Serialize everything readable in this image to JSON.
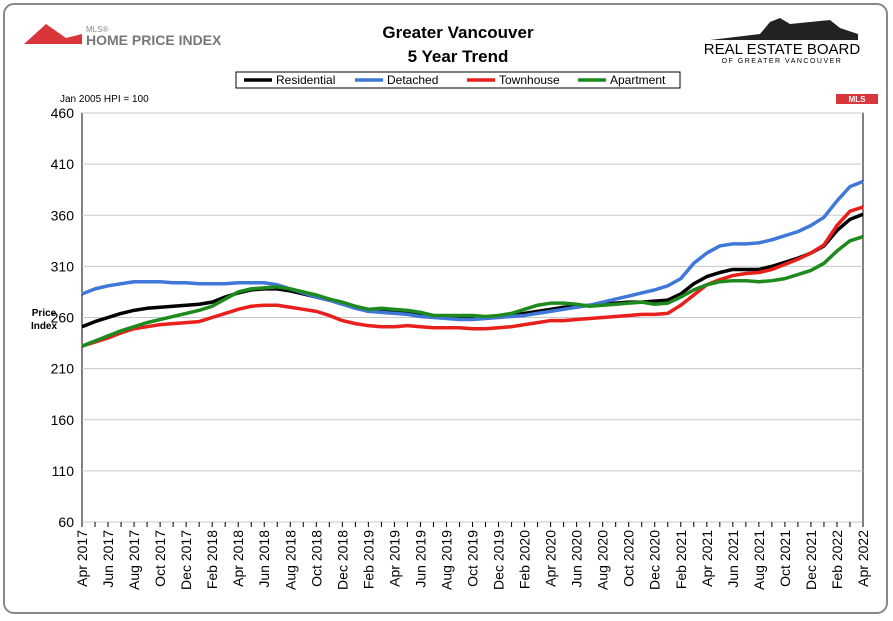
{
  "chart_data": {
    "type": "line",
    "title": "Greater Vancouver",
    "subtitle": "5 Year Trend",
    "logo_left_top": "MLS®",
    "logo_left": "HOME PRICE INDEX",
    "logo_right": "REAL ESTATE BOARD",
    "logo_right_sub": "OF GREATER VANCOUVER",
    "badge": "MLS",
    "note": "Jan 2005 HPI = 100",
    "y_label": "Price Index",
    "categories": [
      "Apr 2017",
      null,
      "Jun 2017",
      null,
      "Aug 2017",
      null,
      "Oct 2017",
      null,
      "Dec 2017",
      null,
      "Feb 2018",
      null,
      "Apr 2018",
      null,
      "Jun 2018",
      null,
      "Aug 2018",
      null,
      "Oct 2018",
      null,
      "Dec 2018",
      null,
      "Feb 2019",
      null,
      "Apr 2019",
      null,
      "Jun 2019",
      null,
      "Aug 2019",
      null,
      "Oct 2019",
      null,
      "Dec 2019",
      null,
      "Feb 2020",
      null,
      "Apr 2020",
      null,
      "Jun 2020",
      null,
      "Aug 2020",
      null,
      "Oct 2020",
      null,
      "Dec 2020",
      null,
      "Feb 2021",
      null,
      "Apr 2021",
      null,
      "Jun 2021",
      null,
      "Aug 2021",
      null,
      "Oct 2021",
      null,
      "Dec 2021",
      null,
      "Feb 2022",
      null,
      "Apr 2022"
    ],
    "series": [
      {
        "name": "Residential",
        "color": "#000000",
        "values": [
          251,
          256,
          260,
          264,
          267,
          269,
          270,
          271,
          272,
          273,
          275,
          280,
          284,
          287,
          288,
          288,
          286,
          283,
          280,
          277,
          273,
          270,
          267,
          266,
          265,
          264,
          262,
          261,
          260,
          260,
          260,
          260,
          261,
          262,
          264,
          266,
          268,
          270,
          271,
          272,
          273,
          274,
          275,
          275,
          276,
          277,
          283,
          293,
          300,
          304,
          307,
          307,
          307,
          310,
          314,
          318,
          323,
          330,
          345,
          356,
          361
        ]
      },
      {
        "name": "Detached",
        "color": "#3f78d8",
        "values": [
          283,
          288,
          291,
          293,
          295,
          295,
          295,
          294,
          294,
          293,
          293,
          293,
          294,
          294,
          294,
          292,
          288,
          284,
          280,
          277,
          273,
          269,
          266,
          265,
          264,
          263,
          261,
          260,
          259,
          258,
          258,
          259,
          260,
          261,
          262,
          264,
          266,
          268,
          270,
          272,
          275,
          278,
          281,
          284,
          287,
          291,
          298,
          313,
          323,
          330,
          332,
          332,
          333,
          336,
          340,
          344,
          350,
          358,
          374,
          388,
          393
        ]
      },
      {
        "name": "Townhouse",
        "color": "#e8201c",
        "values": [
          232,
          236,
          240,
          245,
          249,
          251,
          253,
          254,
          255,
          256,
          260,
          264,
          268,
          271,
          272,
          272,
          270,
          268,
          266,
          262,
          257,
          254,
          252,
          251,
          251,
          252,
          251,
          250,
          250,
          250,
          249,
          249,
          250,
          251,
          253,
          255,
          257,
          257,
          258,
          259,
          260,
          261,
          262,
          263,
          263,
          264,
          272,
          282,
          292,
          297,
          301,
          303,
          304,
          307,
          312,
          317,
          323,
          331,
          350,
          364,
          368
        ]
      },
      {
        "name": "Apartment",
        "color": "#1e8a1e",
        "values": [
          232,
          237,
          242,
          247,
          251,
          255,
          258,
          261,
          264,
          267,
          271,
          278,
          285,
          288,
          289,
          290,
          288,
          285,
          282,
          278,
          275,
          271,
          268,
          269,
          268,
          267,
          265,
          262,
          262,
          262,
          262,
          261,
          262,
          264,
          268,
          272,
          274,
          274,
          273,
          271,
          272,
          273,
          274,
          275,
          273,
          274,
          280,
          287,
          292,
          295,
          296,
          296,
          295,
          296,
          298,
          302,
          306,
          313,
          325,
          335,
          339
        ]
      }
    ],
    "ylim": [
      60,
      460
    ],
    "yticks": [
      60,
      110,
      160,
      210,
      260,
      310,
      360,
      410,
      460
    ],
    "grid": true
  }
}
